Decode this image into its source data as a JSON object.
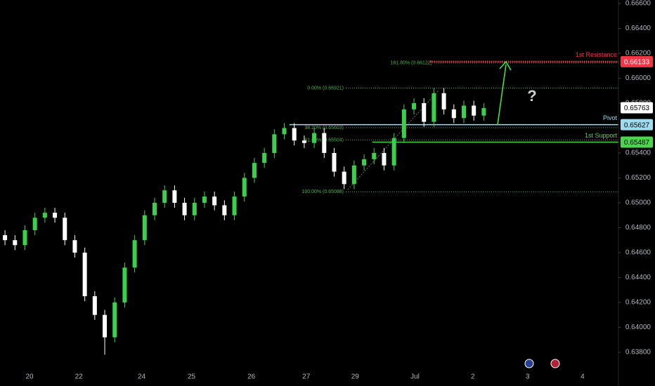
{
  "chart_data": {
    "type": "candlestick",
    "xlim": [
      -0.5,
      61.5
    ],
    "xticks": [
      {
        "value": 2.46,
        "label": "20"
      },
      {
        "value": 7.4,
        "label": "22"
      },
      {
        "value": 13.7,
        "label": "24"
      },
      {
        "value": 18.7,
        "label": "25"
      },
      {
        "value": 24.7,
        "label": "26"
      },
      {
        "value": 30.2,
        "label": "27"
      },
      {
        "value": 35.1,
        "label": "29"
      },
      {
        "value": 41.1,
        "label": "Jul"
      },
      {
        "value": 46.9,
        "label": "2"
      },
      {
        "value": 52.4,
        "label": "3"
      },
      {
        "value": 57.9,
        "label": "4"
      }
    ],
    "ylim": [
      0.6367,
      0.66628
    ],
    "yticks": [
      {
        "value": 0.666,
        "label": "0.66600"
      },
      {
        "value": 0.664,
        "label": "0.66400"
      },
      {
        "value": 0.662,
        "label": "0.66200"
      },
      {
        "value": 0.66,
        "label": "0.66000"
      },
      {
        "value": 0.658,
        "label": "0.65800"
      },
      {
        "value": 0.654,
        "label": "0.65400"
      },
      {
        "value": 0.652,
        "label": "0.65200"
      },
      {
        "value": 0.65,
        "label": "0.65000"
      },
      {
        "value": 0.648,
        "label": "0.64800"
      },
      {
        "value": 0.646,
        "label": "0.64600"
      },
      {
        "value": 0.644,
        "label": "0.64400"
      },
      {
        "value": 0.642,
        "label": "0.64200"
      },
      {
        "value": 0.64,
        "label": "0.64000"
      },
      {
        "value": 0.638,
        "label": "0.63800"
      }
    ],
    "up_color": "#3ccf4e",
    "down_color": "#ffffff",
    "open": [
      0.6474,
      0.647,
      0.6466,
      0.6478,
      0.6488,
      0.6492,
      0.6488,
      0.647,
      0.646,
      0.6425,
      0.641,
      0.6392,
      0.642,
      0.6448,
      0.647,
      0.649,
      0.65,
      0.651,
      0.65,
      0.649,
      0.65,
      0.6505,
      0.6498,
      0.649,
      0.6505,
      0.652,
      0.6532,
      0.654,
      0.6555,
      0.656,
      0.655,
      0.6548,
      0.6556,
      0.654,
      0.6525,
      0.6515,
      0.653,
      0.6535,
      0.654,
      0.653,
      0.6552,
      0.6575,
      0.658,
      0.6565,
      0.6588,
      0.6575,
      0.6568,
      0.6578,
      0.657
    ],
    "high": [
      0.6478,
      0.6474,
      0.6482,
      0.6492,
      0.6496,
      0.6496,
      0.6492,
      0.6474,
      0.6464,
      0.6429,
      0.6414,
      0.6424,
      0.6452,
      0.6474,
      0.6494,
      0.6504,
      0.6514,
      0.6514,
      0.6504,
      0.6504,
      0.6509,
      0.6509,
      0.6502,
      0.6509,
      0.6524,
      0.6536,
      0.6544,
      0.6559,
      0.6564,
      0.6564,
      0.6554,
      0.656,
      0.656,
      0.6544,
      0.6529,
      0.6534,
      0.6539,
      0.6544,
      0.6544,
      0.6556,
      0.6579,
      0.6584,
      0.6584,
      0.6592,
      0.6592,
      0.6579,
      0.6582,
      0.6582,
      0.658
    ],
    "low": [
      0.6466,
      0.6462,
      0.6462,
      0.6474,
      0.6484,
      0.6484,
      0.6466,
      0.6456,
      0.6421,
      0.6406,
      0.6378,
      0.6388,
      0.6416,
      0.6444,
      0.6466,
      0.6486,
      0.6496,
      0.6496,
      0.6486,
      0.6486,
      0.6496,
      0.6494,
      0.6486,
      0.6486,
      0.6501,
      0.6516,
      0.6528,
      0.6536,
      0.6551,
      0.6546,
      0.6544,
      0.6544,
      0.6536,
      0.6521,
      0.6511,
      0.6511,
      0.6526,
      0.6531,
      0.6526,
      0.6526,
      0.6548,
      0.6571,
      0.6561,
      0.6561,
      0.6571,
      0.6564,
      0.6564,
      0.6566,
      0.6566
    ],
    "close": [
      0.647,
      0.6466,
      0.6478,
      0.6488,
      0.6492,
      0.6488,
      0.647,
      0.646,
      0.6425,
      0.641,
      0.6392,
      0.642,
      0.6448,
      0.647,
      0.649,
      0.65,
      0.651,
      0.65,
      0.649,
      0.65,
      0.6505,
      0.6498,
      0.649,
      0.6505,
      0.652,
      0.6532,
      0.654,
      0.6555,
      0.656,
      0.655,
      0.6548,
      0.6556,
      0.654,
      0.6525,
      0.6515,
      0.653,
      0.6535,
      0.654,
      0.653,
      0.6552,
      0.6575,
      0.658,
      0.6565,
      0.6588,
      0.6575,
      0.6568,
      0.6578,
      0.657,
      0.6576
    ],
    "current_price": 0.65763,
    "levels": [
      {
        "name": "1st Resistance",
        "value": 0.66133,
        "color": "#f23645",
        "text_color": "#ffffff",
        "style": "dotted"
      },
      {
        "name": "Pivot",
        "value": 0.65627,
        "color": "#9fdcef",
        "text_color": "#000000",
        "style": "solid"
      },
      {
        "name": "1st Support",
        "value": 0.65487,
        "color": "#4cd44c",
        "text_color": "#000000",
        "style": "solid"
      }
    ],
    "fib_levels": [
      {
        "label": "161.80% (0.66122)",
        "value": 0.66122
      },
      {
        "label": "0.00% (0.65921)",
        "value": 0.65921
      },
      {
        "label": "38.20% (0.65603)",
        "value": 0.65603
      },
      {
        "label": "61.80% (0.65504)",
        "value": 0.65504
      },
      {
        "label": "100.00% (0.65088)",
        "value": 0.65088
      }
    ],
    "fib_color": "#4caf50",
    "annotation": "?"
  }
}
